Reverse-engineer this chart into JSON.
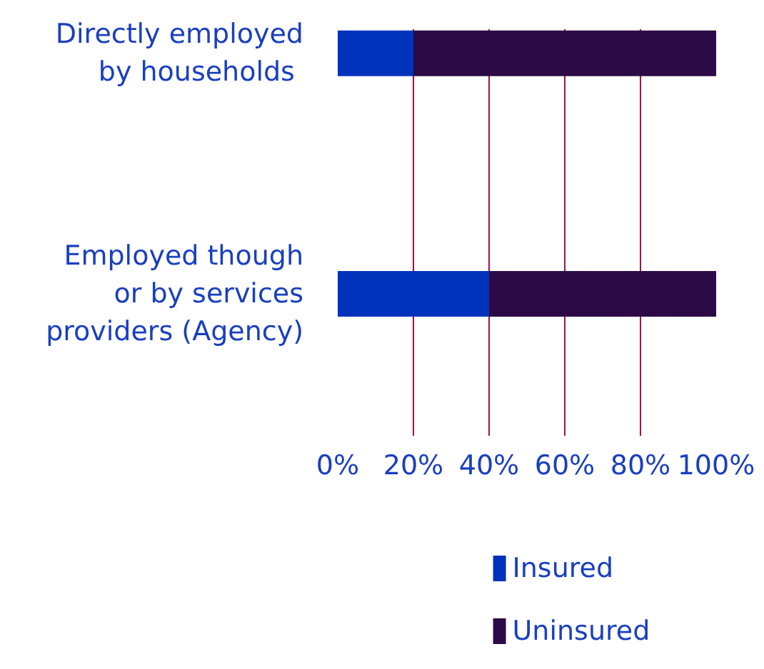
{
  "chart_data": {
    "type": "bar",
    "orientation": "horizontal",
    "stacked": true,
    "categories": [
      "Directly employed\nby  households",
      "Employed though\nor by services\nproviders (Agency)"
    ],
    "series": [
      {
        "name": "Insured",
        "color": "#0033bb",
        "values": [
          20,
          40
        ]
      },
      {
        "name": "Uninsured",
        "color": "#2b0a45",
        "values": [
          80,
          60
        ]
      }
    ],
    "xlim": [
      0,
      100
    ],
    "xticks": [
      {
        "value": 0,
        "label": "0%"
      },
      {
        "value": 20,
        "label": "20%"
      },
      {
        "value": 40,
        "label": "40%"
      },
      {
        "value": 60,
        "label": "60%"
      },
      {
        "value": 80,
        "label": "80%"
      },
      {
        "value": 100,
        "label": "100%"
      }
    ],
    "grid": "x",
    "legend": "bottom"
  }
}
